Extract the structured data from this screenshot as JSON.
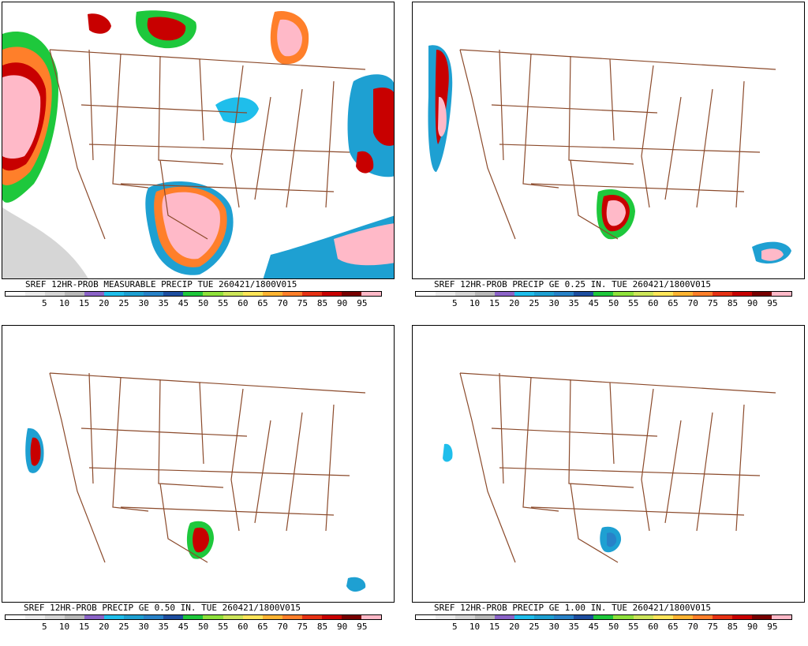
{
  "colors": {
    "state_lines": "#8b4a2b",
    "scale": [
      "#ffffff",
      "#ececec",
      "#d6d6d6",
      "#b9b9b9",
      "#8c64c8",
      "#1fbeeb",
      "#1ea0d2",
      "#2882c8",
      "#1d4ea0",
      "#1ec83c",
      "#8fe23c",
      "#cde65a",
      "#ffe65a",
      "#ffb432",
      "#ff7f2a",
      "#e63214",
      "#c80000",
      "#780000",
      "#ffb9c8"
    ]
  },
  "scale_labels": [
    "5",
    "10",
    "15",
    "20",
    "25",
    "30",
    "35",
    "45",
    "50",
    "55",
    "60",
    "65",
    "70",
    "75",
    "85",
    "90",
    "95"
  ],
  "panels": [
    {
      "title": "SREF 12HR-PROB MEASURABLE PRECIP TUE 260421/1800V015"
    },
    {
      "title": "SREF 12HR-PROB PRECIP GE 0.25 IN. TUE 260421/1800V015"
    },
    {
      "title": "SREF 12HR-PROB PRECIP GE 0.50 IN. TUE 260421/1800V015"
    },
    {
      "title": "SREF 12HR-PROB PRECIP GE 1.00 IN. TUE 260421/1800V015"
    }
  ]
}
